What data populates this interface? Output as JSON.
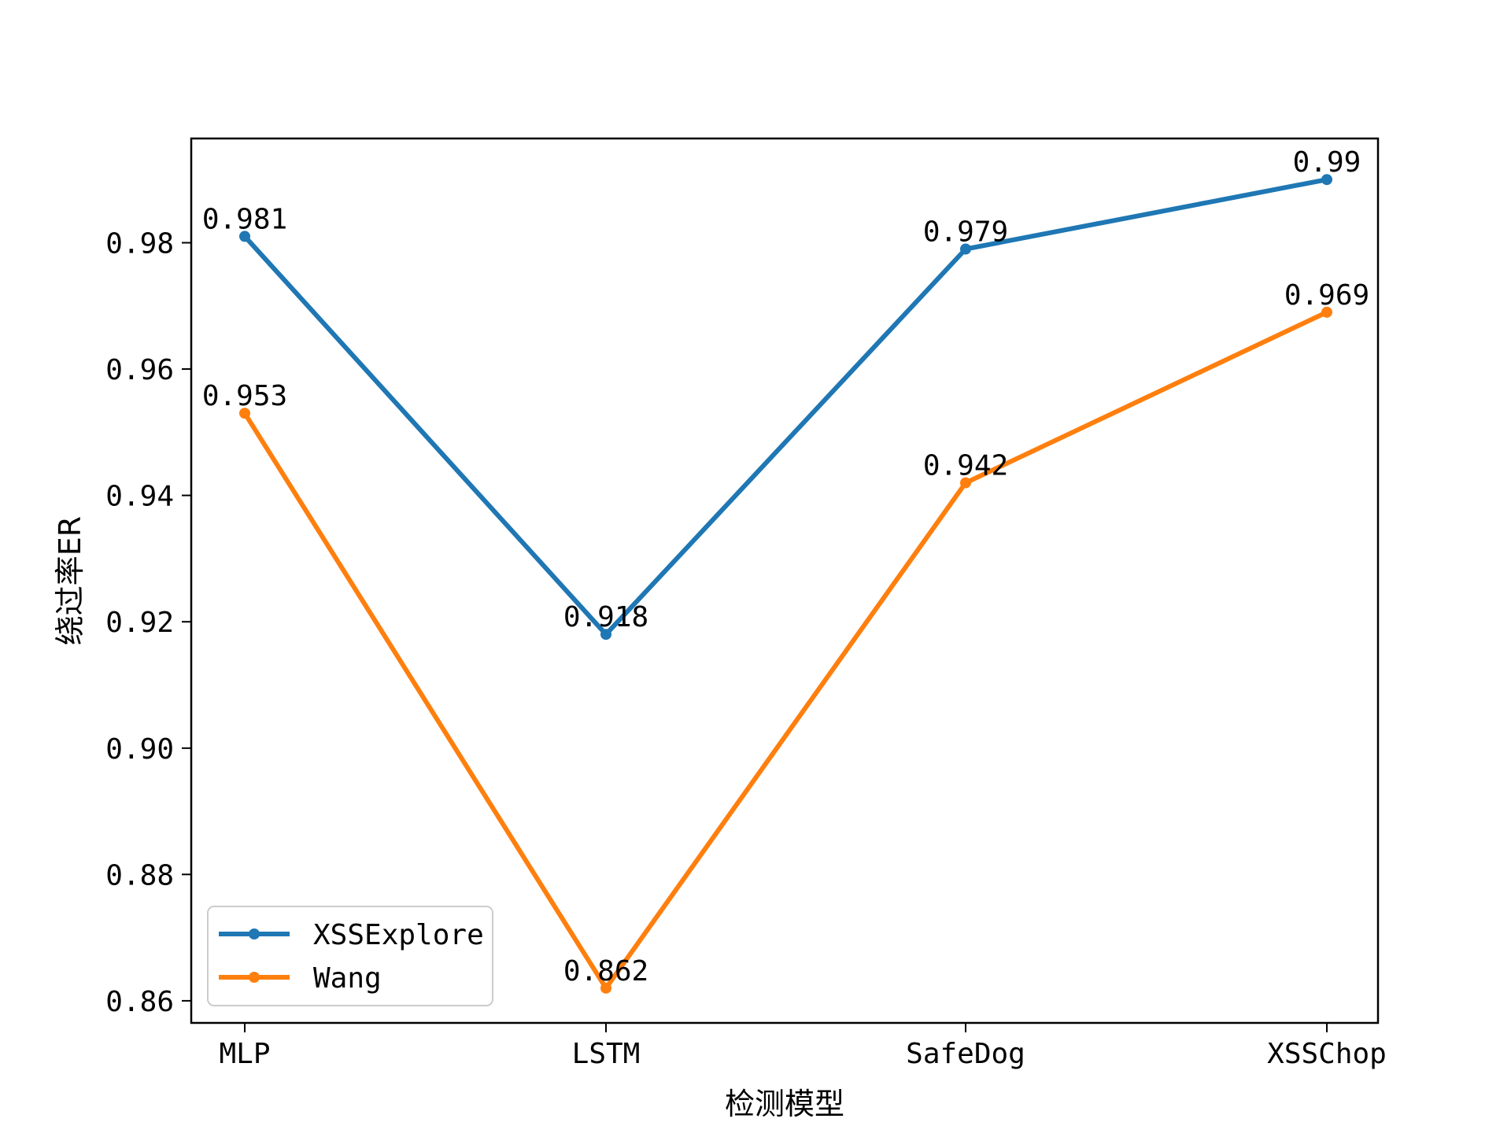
{
  "chart_data": {
    "type": "line",
    "title": "",
    "xlabel": "检测模型",
    "ylabel": "绕过率ER",
    "categories": [
      "MLP",
      "LSTM",
      "SafeDog",
      "XSSChop"
    ],
    "series": [
      {
        "name": "XSSExplore",
        "values": [
          0.981,
          0.918,
          0.979,
          0.99
        ],
        "labels": [
          "0.981",
          "0.918",
          "0.979",
          "0.99"
        ],
        "color": "#1f77b4"
      },
      {
        "name": "Wang",
        "values": [
          0.953,
          0.862,
          0.942,
          0.969
        ],
        "labels": [
          "0.953",
          "0.862",
          "0.942",
          "0.969"
        ],
        "color": "#ff7f0e"
      }
    ],
    "ylim": [
      0.8565,
      0.9965
    ],
    "yticks": [
      0.86,
      0.88,
      0.9,
      0.92,
      0.94,
      0.96,
      0.98
    ],
    "ytick_labels": [
      "0.86",
      "0.88",
      "0.90",
      "0.92",
      "0.94",
      "0.96",
      "0.98"
    ],
    "grid": false,
    "legend": {
      "placement": "lower-left",
      "entries": [
        "XSSExplore",
        "Wang"
      ]
    }
  }
}
